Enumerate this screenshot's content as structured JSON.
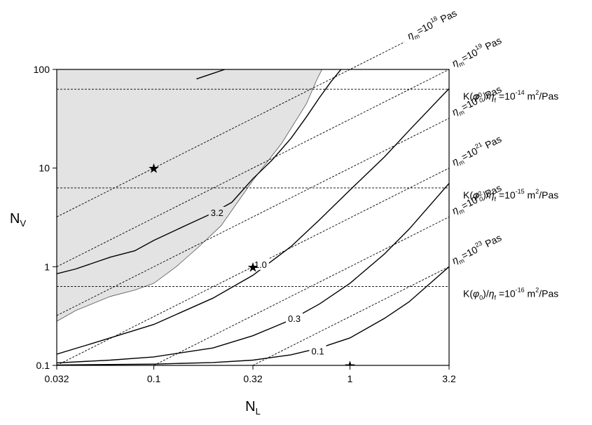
{
  "chart_data": {
    "type": "line",
    "xscale": "log",
    "yscale": "log",
    "xlim": [
      0.032,
      3.2
    ],
    "ylim": [
      0.1,
      100
    ],
    "xlabel": {
      "main": "N",
      "sub": "L"
    },
    "ylabel": {
      "main": "N",
      "sub": "V"
    },
    "xticks": [
      {
        "value": 0.032,
        "label": "0.032"
      },
      {
        "value": 0.1,
        "label": "0.1"
      },
      {
        "value": 0.32,
        "label": "0.32"
      },
      {
        "value": 1,
        "label": "1"
      },
      {
        "value": 3.2,
        "label": "3.2"
      }
    ],
    "yticks": [
      {
        "value": 0.1,
        "label": "0.1"
      },
      {
        "value": 1,
        "label": "1"
      },
      {
        "value": 10,
        "label": "10"
      },
      {
        "value": 100,
        "label": "100"
      }
    ],
    "colors": {
      "shaded_region": "#e3e3e3",
      "lines": "#000000"
    },
    "shaded_region": {
      "boundary": [
        [
          0.032,
          0.28
        ],
        [
          0.04,
          0.36
        ],
        [
          0.06,
          0.5
        ],
        [
          0.08,
          0.58
        ],
        [
          0.1,
          0.68
        ],
        [
          0.13,
          1.0
        ],
        [
          0.17,
          1.6
        ],
        [
          0.22,
          2.6
        ],
        [
          0.32,
          7.5
        ],
        [
          0.45,
          18
        ],
        [
          0.6,
          45
        ],
        [
          0.68,
          80
        ],
        [
          0.72,
          100
        ]
      ]
    },
    "series": [
      {
        "label": "3.2",
        "points": [
          [
            0.032,
            0.85
          ],
          [
            0.04,
            0.95
          ],
          [
            0.06,
            1.25
          ],
          [
            0.08,
            1.45
          ],
          [
            0.1,
            1.85
          ],
          [
            0.15,
            2.7
          ],
          [
            0.2,
            3.5
          ],
          [
            0.25,
            4.5
          ],
          [
            0.32,
            7.8
          ],
          [
            0.4,
            12
          ],
          [
            0.5,
            20
          ],
          [
            0.6,
            33
          ],
          [
            0.7,
            52
          ],
          [
            0.8,
            75
          ],
          [
            0.9,
            100
          ]
        ],
        "label_at": [
          0.21,
          3.55
        ]
      },
      {
        "label": "",
        "points": [
          [
            0.165,
            80
          ],
          [
            0.19,
            88
          ],
          [
            0.23,
            100
          ]
        ]
      },
      {
        "label": "1.0",
        "points": [
          [
            0.032,
            0.13
          ],
          [
            0.05,
            0.17
          ],
          [
            0.1,
            0.26
          ],
          [
            0.2,
            0.48
          ],
          [
            0.32,
            0.82
          ],
          [
            0.5,
            1.6
          ],
          [
            0.7,
            3.0
          ],
          [
            1.0,
            6.0
          ],
          [
            1.5,
            13
          ],
          [
            2.0,
            24
          ],
          [
            3.2,
            64
          ]
        ],
        "label_at": [
          0.35,
          1.06
        ]
      },
      {
        "label": "0.3",
        "points": [
          [
            0.032,
            0.106
          ],
          [
            0.06,
            0.113
          ],
          [
            0.1,
            0.122
          ],
          [
            0.2,
            0.15
          ],
          [
            0.32,
            0.2
          ],
          [
            0.5,
            0.29
          ],
          [
            0.7,
            0.42
          ],
          [
            1.0,
            0.68
          ],
          [
            1.5,
            1.35
          ],
          [
            2.0,
            2.4
          ],
          [
            3.2,
            7.0
          ]
        ],
        "label_at": [
          0.52,
          0.3
        ]
      },
      {
        "label": "0.1",
        "points": [
          [
            0.032,
            0.101
          ],
          [
            0.1,
            0.103
          ],
          [
            0.2,
            0.107
          ],
          [
            0.32,
            0.113
          ],
          [
            0.5,
            0.128
          ],
          [
            0.7,
            0.15
          ],
          [
            1.0,
            0.19
          ],
          [
            1.5,
            0.3
          ],
          [
            2.0,
            0.44
          ],
          [
            3.2,
            1.0
          ]
        ],
        "label_at": [
          0.685,
          0.14
        ]
      }
    ],
    "stars": [
      [
        0.1,
        10
      ],
      [
        0.32,
        1.0
      ],
      [
        1.0,
        0.1
      ]
    ],
    "viscosity_lines": [
      {
        "label": "ηm=10^18 Pas",
        "mantissa": "η",
        "sub": "m",
        "base": "=10",
        "exp": "18",
        "unit": " Pas",
        "N_L_at_N_V_1": 0.01
      },
      {
        "label": "ηm=10^19 Pas",
        "mantissa": "η",
        "sub": "m",
        "base": "=10",
        "exp": "19",
        "unit": " Pas",
        "N_L_at_N_V_1": 0.032
      },
      {
        "label": "ηm=10^20 Pas",
        "mantissa": "η",
        "sub": "m",
        "base": "=10",
        "exp": "20",
        "unit": " Pas",
        "N_L_at_N_V_1": 0.1
      },
      {
        "label": "ηm=10^21 Pas",
        "mantissa": "η",
        "sub": "m",
        "base": "=10",
        "exp": "21",
        "unit": " Pas",
        "N_L_at_N_V_1": 0.32
      },
      {
        "label": "ηm=10^22 Pas",
        "mantissa": "η",
        "sub": "m",
        "base": "=10",
        "exp": "22",
        "unit": " Pas",
        "N_L_at_N_V_1": 1.0
      },
      {
        "label": "ηm=10^23 Pas",
        "mantissa": "η",
        "sub": "m",
        "base": "=10",
        "exp": "23",
        "unit": " Pas",
        "N_L_at_N_V_1": 3.2
      }
    ],
    "permeability_lines": [
      {
        "value": 63,
        "label": "K(φ0)/ηf =10^-14 m^2/Pas",
        "exp": "-14"
      },
      {
        "value": 6.3,
        "label": "K(φ0)/ηf =10^-15 m^2/Pas",
        "exp": "-15"
      },
      {
        "value": 0.63,
        "label": "K(φ0)/ηf =10^-16 m^2/Pas",
        "exp": "-16"
      }
    ]
  }
}
